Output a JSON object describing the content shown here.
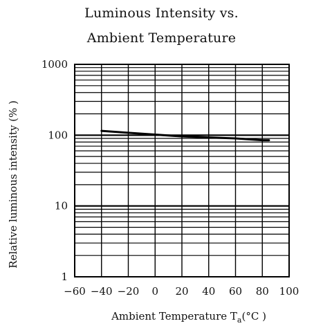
{
  "chart_data": {
    "type": "line",
    "title_line1": "Luminous Intensity vs.",
    "title_line2": "Ambient Temperature",
    "xlabel_main": "Ambient Temperature T",
    "xlabel_sub": "a",
    "xlabel_unit": "(°C )",
    "ylabel": "Relative luminous intensity  (% )",
    "x_scale": "linear",
    "y_scale": "log",
    "xlim": [
      -60,
      100
    ],
    "ylim": [
      1,
      1000
    ],
    "x_ticks": [
      -60,
      -40,
      -20,
      0,
      20,
      40,
      60,
      80,
      100
    ],
    "x_tick_labels": [
      "−60",
      "−40",
      "−20",
      "0",
      "20",
      "40",
      "60",
      "80",
      "100"
    ],
    "y_ticks": [
      1,
      10,
      100,
      1000
    ],
    "y_tick_labels": [
      "1",
      "10",
      "100",
      "1000"
    ],
    "grid": true,
    "series": [
      {
        "x": [
          -40,
          -20,
          0,
          20,
          40,
          60,
          80,
          85
        ],
        "y": [
          115,
          108,
          102,
          96,
          93,
          90,
          85,
          85
        ],
        "color": "#000000"
      }
    ]
  }
}
